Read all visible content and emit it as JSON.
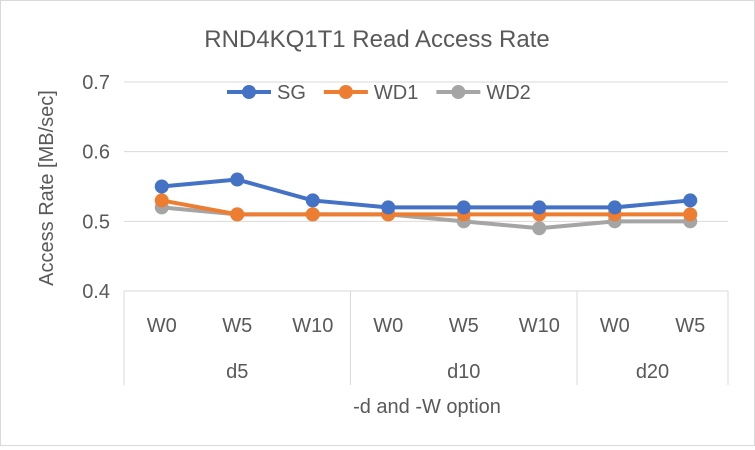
{
  "chart_data": {
    "type": "line",
    "title": "RND4KQ1T1 Read Access Rate",
    "xlabel": "-d and -W option",
    "ylabel": "Access Rate [MB/sec]",
    "ylim": [
      0.4,
      0.7
    ],
    "yticks": [
      "0.4",
      "0.5",
      "0.6",
      "0.7"
    ],
    "ytick_values": [
      0.4,
      0.5,
      0.6,
      0.7
    ],
    "grid": true,
    "legend_position": "top",
    "categories": [
      "W0",
      "W5",
      "W10",
      "W0",
      "W5",
      "W10",
      "W0",
      "W5"
    ],
    "groups": [
      {
        "label": "d5",
        "count": 3
      },
      {
        "label": "d10",
        "count": 3
      },
      {
        "label": "d20",
        "count": 2
      }
    ],
    "series": [
      {
        "name": "SG",
        "color": "#4472c4",
        "values": [
          0.55,
          0.56,
          0.53,
          0.52,
          0.52,
          0.52,
          0.52,
          0.53
        ]
      },
      {
        "name": "WD1",
        "color": "#ed7d31",
        "values": [
          0.53,
          0.51,
          0.51,
          0.51,
          0.51,
          0.51,
          0.51,
          0.51
        ]
      },
      {
        "name": "WD2",
        "color": "#a5a5a5",
        "values": [
          0.52,
          0.51,
          0.51,
          0.51,
          0.5,
          0.49,
          0.5,
          0.5
        ]
      }
    ]
  }
}
